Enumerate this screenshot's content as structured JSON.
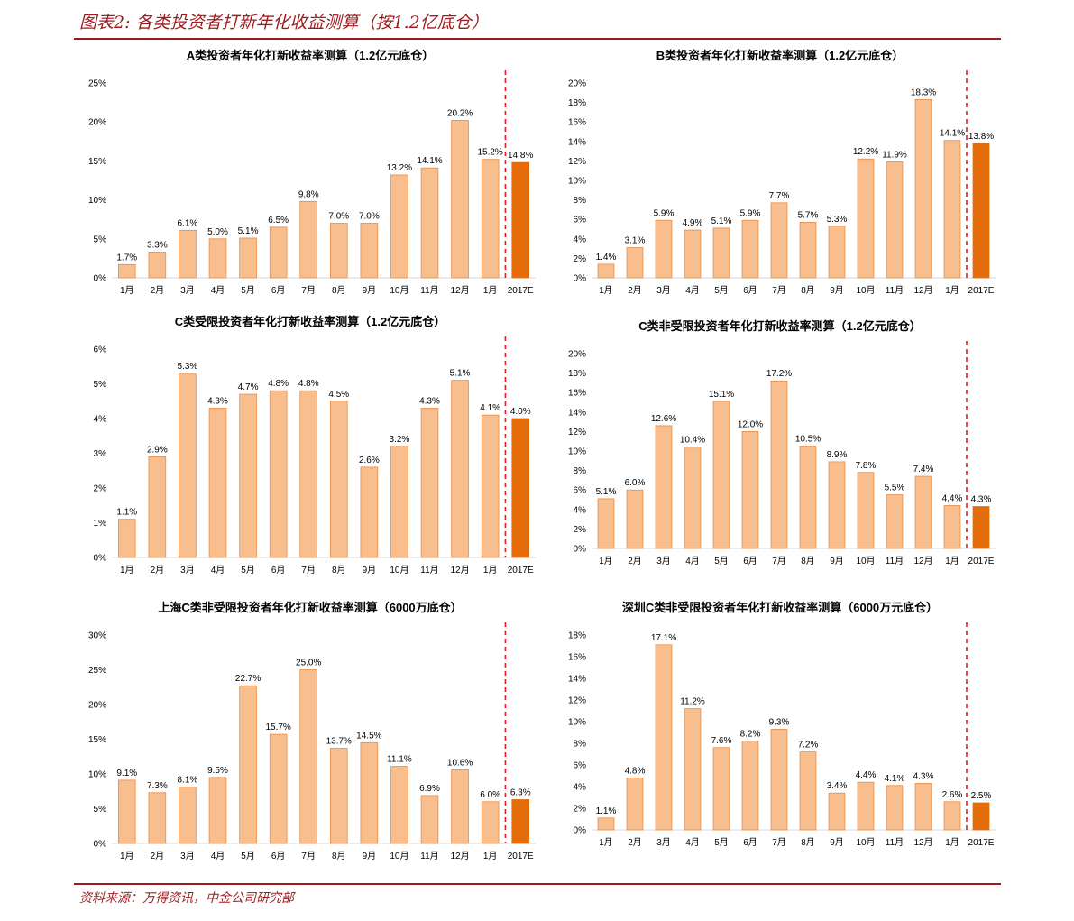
{
  "figure": {
    "title": "图表2: 各类投资者打新年化收益测算（按1.2亿底仓）",
    "source": "资料来源：万得资讯，中金公司研究部"
  },
  "colors": {
    "bar": "#f8be8d",
    "bar_edge": "#e88c45",
    "bar_highlight": "#e46c0a",
    "divider": "#e31e24",
    "accent": "#9e1b1f"
  },
  "chart_data": [
    {
      "type": "bar",
      "title": "A类投资者年化打新收益率测算（1.2亿元底仓）",
      "categories": [
        "1月",
        "2月",
        "3月",
        "4月",
        "5月",
        "6月",
        "7月",
        "8月",
        "9月",
        "10月",
        "11月",
        "12月",
        "1月",
        "2017E"
      ],
      "values": [
        1.7,
        3.3,
        6.1,
        5.0,
        5.1,
        6.5,
        9.8,
        7.0,
        7.0,
        13.2,
        14.1,
        20.2,
        15.2,
        14.8
      ],
      "data_labels": [
        "1.7%",
        "3.3%",
        "6.1%",
        "5.0%",
        "5.1%",
        "6.5%",
        "9.8%",
        "7.0%",
        "7.0%",
        "13.2%",
        "14.1%",
        "20.2%",
        "15.2%",
        "14.8%"
      ],
      "ylim": [
        0,
        25
      ],
      "yticks": [
        "0%",
        "5%",
        "10%",
        "15%",
        "20%",
        "25%"
      ],
      "highlight_last": true
    },
    {
      "type": "bar",
      "title": "B类投资者年化打新收益率测算（1.2亿元底仓）",
      "categories": [
        "1月",
        "2月",
        "3月",
        "4月",
        "5月",
        "6月",
        "7月",
        "8月",
        "9月",
        "10月",
        "11月",
        "12月",
        "1月",
        "2017E"
      ],
      "values": [
        1.4,
        3.1,
        5.9,
        4.9,
        5.1,
        5.9,
        7.7,
        5.7,
        5.3,
        12.2,
        11.9,
        18.3,
        14.1,
        13.8
      ],
      "data_labels": [
        "1.4%",
        "3.1%",
        "5.9%",
        "4.9%",
        "5.1%",
        "5.9%",
        "7.7%",
        "5.7%",
        "5.3%",
        "12.2%",
        "11.9%",
        "18.3%",
        "14.1%",
        "13.8%"
      ],
      "ylim": [
        0,
        20
      ],
      "yticks": [
        "0%",
        "2%",
        "4%",
        "6%",
        "8%",
        "10%",
        "12%",
        "14%",
        "16%",
        "18%",
        "20%"
      ],
      "highlight_last": true
    },
    {
      "type": "bar",
      "title": "C类受限投资者年化打新收益率测算（1.2亿元底仓）",
      "categories": [
        "1月",
        "2月",
        "3月",
        "4月",
        "5月",
        "6月",
        "7月",
        "8月",
        "9月",
        "10月",
        "11月",
        "12月",
        "1月",
        "2017E"
      ],
      "values": [
        1.1,
        2.9,
        5.3,
        4.3,
        4.7,
        4.8,
        4.8,
        4.5,
        2.6,
        3.2,
        4.3,
        5.1,
        4.1,
        4.0
      ],
      "data_labels": [
        "1.1%",
        "2.9%",
        "5.3%",
        "4.3%",
        "4.7%",
        "4.8%",
        "4.8%",
        "4.5%",
        "2.6%",
        "3.2%",
        "4.3%",
        "5.1%",
        "4.1%",
        "4.0%"
      ],
      "ylim": [
        0,
        6
      ],
      "yticks": [
        "0%",
        "1%",
        "2%",
        "3%",
        "4%",
        "5%",
        "6%"
      ],
      "highlight_last": true
    },
    {
      "type": "bar",
      "title": "C类非受限投资者年化打新收益率测算（1.2亿元底仓）",
      "categories": [
        "1月",
        "2月",
        "3月",
        "4月",
        "5月",
        "6月",
        "7月",
        "8月",
        "9月",
        "10月",
        "11月",
        "12月",
        "1月",
        "2017E"
      ],
      "values": [
        5.1,
        6.0,
        12.6,
        10.4,
        15.1,
        12.0,
        17.2,
        10.5,
        8.9,
        7.8,
        5.5,
        7.4,
        4.4,
        4.3
      ],
      "data_labels": [
        "5.1%",
        "6.0%",
        "12.6%",
        "10.4%",
        "15.1%",
        "12.0%",
        "17.2%",
        "10.5%",
        "8.9%",
        "7.8%",
        "5.5%",
        "7.4%",
        "4.4%",
        "4.3%"
      ],
      "ylim": [
        0,
        20
      ],
      "yticks": [
        "0%",
        "2%",
        "4%",
        "6%",
        "8%",
        "10%",
        "12%",
        "14%",
        "16%",
        "18%",
        "20%"
      ],
      "highlight_last": true
    },
    {
      "type": "bar",
      "title": "上海C类非受限投资者年化打新收益率测算（6000万底仓）",
      "categories": [
        "1月",
        "2月",
        "3月",
        "4月",
        "5月",
        "6月",
        "7月",
        "8月",
        "9月",
        "10月",
        "11月",
        "12月",
        "1月",
        "2017E"
      ],
      "values": [
        9.1,
        7.3,
        8.1,
        9.5,
        22.7,
        15.7,
        25.0,
        13.7,
        14.5,
        11.1,
        6.9,
        10.6,
        6.0,
        6.3
      ],
      "data_labels": [
        "9.1%",
        "7.3%",
        "8.1%",
        "9.5%",
        "22.7%",
        "15.7%",
        "25.0%",
        "13.7%",
        "14.5%",
        "11.1%",
        "6.9%",
        "10.6%",
        "6.0%",
        "6.3%"
      ],
      "ylim": [
        0,
        30
      ],
      "yticks": [
        "0%",
        "5%",
        "10%",
        "15%",
        "20%",
        "25%",
        "30%"
      ],
      "highlight_last": true
    },
    {
      "type": "bar",
      "title": "深圳C类非受限投资者年化打新收益率测算（6000万元底仓）",
      "categories": [
        "1月",
        "2月",
        "3月",
        "4月",
        "5月",
        "6月",
        "7月",
        "8月",
        "9月",
        "10月",
        "11月",
        "12月",
        "1月",
        "2017E"
      ],
      "values": [
        1.1,
        4.8,
        17.1,
        11.2,
        7.6,
        8.2,
        9.3,
        7.2,
        3.4,
        4.4,
        4.1,
        4.3,
        2.6,
        2.5
      ],
      "data_labels": [
        "1.1%",
        "4.8%",
        "17.1%",
        "11.2%",
        "7.6%",
        "8.2%",
        "9.3%",
        "7.2%",
        "3.4%",
        "4.4%",
        "4.1%",
        "4.3%",
        "2.6%",
        "2.5%"
      ],
      "ylim": [
        0,
        18
      ],
      "yticks": [
        "0%",
        "2%",
        "4%",
        "6%",
        "8%",
        "10%",
        "12%",
        "14%",
        "16%",
        "18%"
      ],
      "highlight_last": true
    }
  ]
}
